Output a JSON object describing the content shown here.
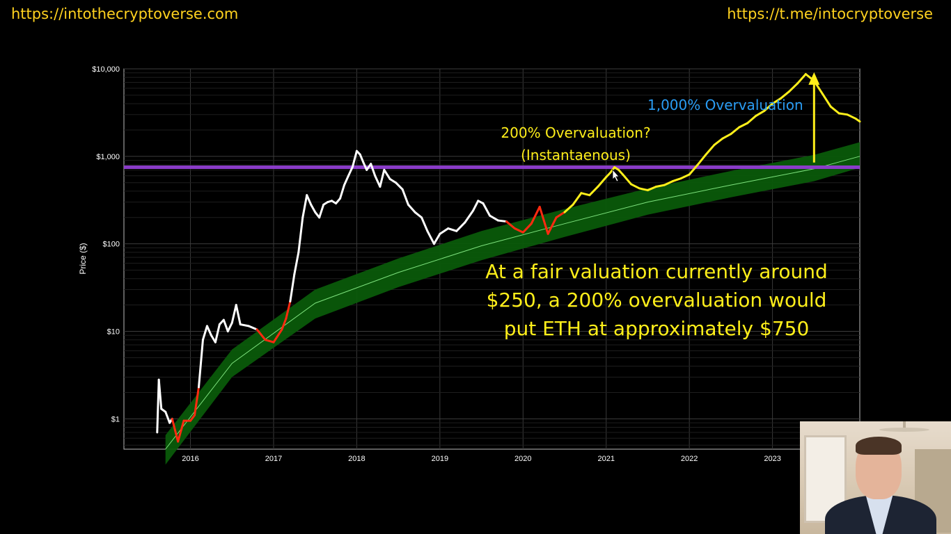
{
  "header": {
    "left_url": "https://intothecryptoverse.com",
    "right_url": "https://t.me/intocryptoverse"
  },
  "chart_data": {
    "type": "line",
    "y_scale": "log",
    "ylabel": "Price ($)",
    "xlabel": "",
    "xlim": [
      2015.2,
      2024.05
    ],
    "ylim": [
      0.45,
      10000
    ],
    "y_ticks": [
      {
        "value": 1,
        "label": "$1"
      },
      {
        "value": 10,
        "label": "$10"
      },
      {
        "value": 100,
        "label": "$100"
      },
      {
        "value": 1000,
        "label": "$1,000"
      },
      {
        "value": 10000,
        "label": "$10,000"
      }
    ],
    "x_ticks": [
      {
        "value": 2016,
        "label": "2016"
      },
      {
        "value": 2017,
        "label": "2017"
      },
      {
        "value": 2018,
        "label": "2018"
      },
      {
        "value": 2019,
        "label": "2019"
      },
      {
        "value": 2020,
        "label": "2020"
      },
      {
        "value": 2021,
        "label": "2021"
      },
      {
        "value": 2022,
        "label": "2022"
      },
      {
        "value": 2023,
        "label": "2023"
      }
    ],
    "grid": true,
    "colors": {
      "price": "#ffffff",
      "undervalued": "#ff2a10",
      "near_fair": "#9af0a8",
      "projection": "#ffef1a",
      "band": "#0a5a0a",
      "fair_line": "#7ee27e",
      "horizontal_line": "#8a3cc8",
      "arrow": "#ffef1a",
      "axes": "#cccccc"
    },
    "horizontal_line": {
      "value": 750
    },
    "fair_value_band": {
      "x": [
        2015.7,
        2016.5,
        2017.5,
        2018.5,
        2019.5,
        2020.5,
        2021.5,
        2022.5,
        2023.5,
        2024.05
      ],
      "center": [
        0.45,
        4.3,
        21,
        47,
        95,
        170,
        300,
        470,
        720,
        1000
      ],
      "lower": [
        0.3,
        3.0,
        14,
        32,
        65,
        120,
        215,
        340,
        520,
        740
      ],
      "upper": [
        0.65,
        6.2,
        30,
        68,
        140,
        250,
        430,
        680,
        1040,
        1450
      ]
    },
    "series": [
      {
        "role": "price",
        "x": [
          2015.6,
          2015.62,
          2015.65,
          2015.7,
          2015.75,
          2015.78,
          2015.85,
          2015.92,
          2016.0,
          2016.05,
          2016.1,
          2016.15,
          2016.2,
          2016.25,
          2016.3,
          2016.35,
          2016.4,
          2016.45,
          2016.5,
          2016.55,
          2016.6,
          2016.7,
          2016.8,
          2016.9,
          2017.0,
          2017.1,
          2017.15,
          2017.2,
          2017.25,
          2017.3,
          2017.35,
          2017.4,
          2017.45,
          2017.5,
          2017.55,
          2017.6,
          2017.65,
          2017.7,
          2017.75,
          2017.8,
          2017.85,
          2017.9,
          2017.95,
          2018.0,
          2018.04,
          2018.08,
          2018.12,
          2018.17,
          2018.22,
          2018.28,
          2018.33,
          2018.4,
          2018.47,
          2018.55,
          2018.62,
          2018.7,
          2018.78,
          2018.85,
          2018.93,
          2019.0,
          2019.1,
          2019.2,
          2019.3,
          2019.4,
          2019.46,
          2019.52,
          2019.6,
          2019.7,
          2019.8,
          2019.9,
          2020.0,
          2020.1,
          2020.2,
          2020.3,
          2020.4,
          2020.5,
          2020.6,
          2020.7,
          2020.8,
          2020.9,
          2021.0,
          2021.05,
          2021.1,
          2021.15,
          2021.2,
          2021.3,
          2021.4,
          2021.5,
          2021.6,
          2021.7,
          2021.8,
          2021.9,
          2022.0,
          2022.1,
          2022.2,
          2022.3,
          2022.4,
          2022.5,
          2022.6,
          2022.7,
          2022.8,
          2022.9,
          2023.0,
          2023.1,
          2023.2,
          2023.3,
          2023.4,
          2023.5,
          2023.6,
          2023.7,
          2023.8,
          2023.9,
          2024.0,
          2024.05
        ],
        "y": [
          0.7,
          2.8,
          1.3,
          1.2,
          0.9,
          1.0,
          0.55,
          0.95,
          0.95,
          1.1,
          2.3,
          8.0,
          11.5,
          9.0,
          7.5,
          12.0,
          13.5,
          10.0,
          12.5,
          20.0,
          12.0,
          11.5,
          10.5,
          8.0,
          7.5,
          10.5,
          14.0,
          22.0,
          45.0,
          80.0,
          200.0,
          360.0,
          280.0,
          230.0,
          200.0,
          280.0,
          300.0,
          310.0,
          290.0,
          330.0,
          470.0,
          600.0,
          760.0,
          1150.0,
          1050.0,
          850.0,
          700.0,
          820.0,
          600.0,
          450.0,
          700.0,
          550.0,
          500.0,
          420.0,
          280.0,
          230.0,
          200.0,
          140.0,
          100.0,
          130.0,
          150.0,
          140.0,
          175.0,
          240.0,
          310.0,
          290.0,
          210.0,
          185.0,
          180.0,
          150.0,
          135.0,
          170.0,
          265.0,
          130.0,
          200.0,
          230.0,
          280.0,
          380.0,
          360.0,
          450.0,
          580.0,
          650.0,
          750.0,
          700.0,
          620.0,
          480.0,
          430.0,
          410.0,
          450.0,
          470.0,
          520.0,
          560.0,
          620.0,
          800.0,
          1050.0,
          1350.0,
          1600.0,
          1800.0,
          2150.0,
          2400.0,
          2900.0,
          3300.0,
          4000.0,
          4600.0,
          5500.0,
          6800.0,
          8700.0,
          7300.0,
          5200.0,
          3700.0,
          3100.0,
          3000.0,
          2700.0,
          2500.0
        ]
      }
    ],
    "arrow": {
      "x": 2023.5,
      "from": 850,
      "to": 8500
    },
    "annotations": [
      {
        "key": "overval_1000",
        "text": "1,000% Overvaluation"
      },
      {
        "key": "overval_200_q",
        "text": "200% Overvaluation?"
      },
      {
        "key": "instantaneous",
        "text": "(Instantaenous)"
      },
      {
        "key": "note_line1",
        "text": "At a fair valuation currently around"
      },
      {
        "key": "note_line2",
        "text": "$250,  a 200% overvaluation would"
      },
      {
        "key": "note_line3",
        "text": "put ETH at approximately $750"
      }
    ]
  }
}
